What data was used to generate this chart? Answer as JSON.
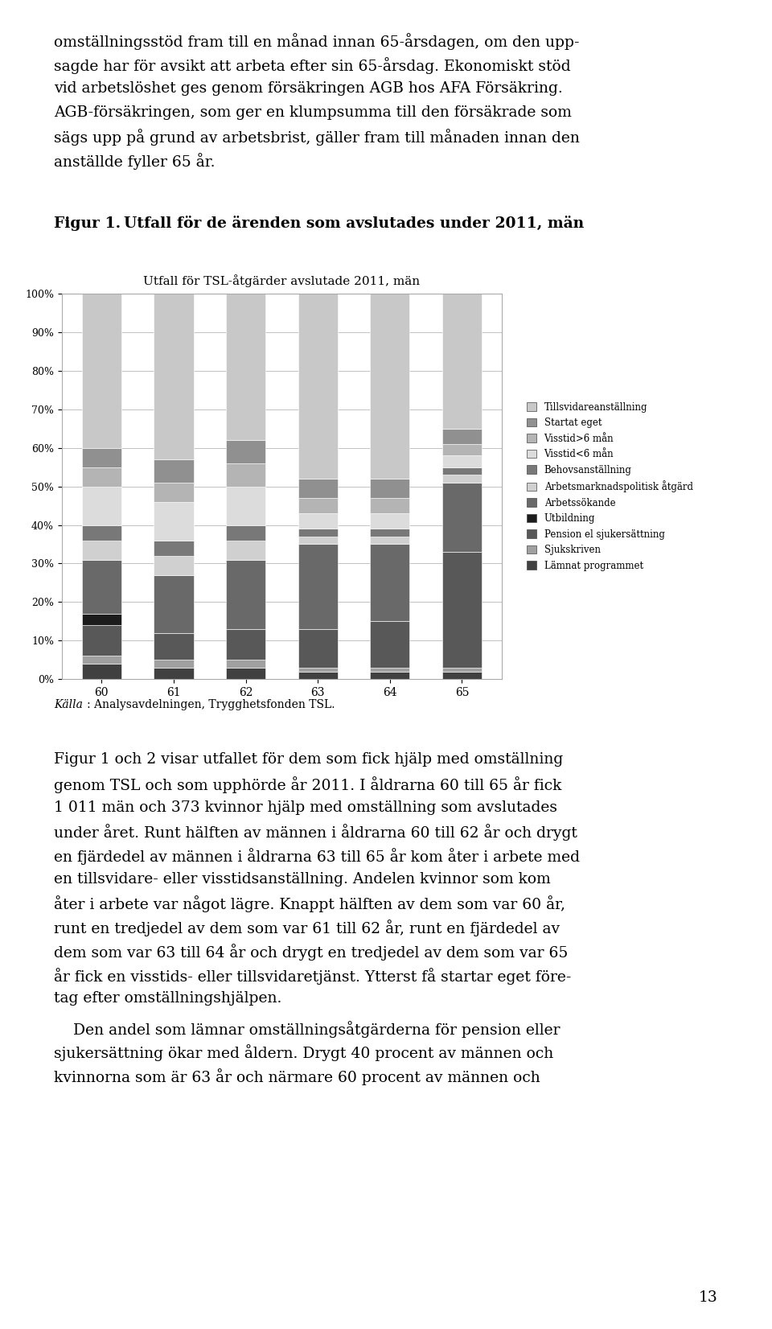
{
  "title": "Utfall för TSL-åtgärder avslutade 2011, män",
  "fig_caption": "Figur 1.",
  "fig_caption2": "Utfall för de ärenden som avslutades under 2011, män",
  "categories": [
    "60",
    "61",
    "62",
    "63",
    "64",
    "65"
  ],
  "legend_labels": [
    "Tillsvidareanställning",
    "Startat eget",
    "Visstid>6 mån",
    "Visstid<6 mån",
    "Behovsanställning",
    "Arbetsmarknadspolitisk åtgärd",
    "Arbetssökande",
    "Utbildning",
    "Pension el sjukersättning",
    "Sjukskriven",
    "Lämnat programmet"
  ],
  "colors": [
    "#c8c8c8",
    "#909090",
    "#b4b4b4",
    "#dcdcdc",
    "#787878",
    "#d0d0d0",
    "#696969",
    "#1c1c1c",
    "#585858",
    "#a0a0a0",
    "#404040"
  ],
  "data": {
    "Lämnat programmet": [
      4,
      3,
      3,
      2,
      2,
      2
    ],
    "Sjukskriven": [
      2,
      2,
      2,
      1,
      1,
      1
    ],
    "Pension el sjukersättning": [
      8,
      7,
      8,
      10,
      12,
      30
    ],
    "Utbildning": [
      3,
      0,
      0,
      0,
      0,
      0
    ],
    "Arbetssökande": [
      14,
      15,
      18,
      22,
      20,
      18
    ],
    "Arbetsmarknadspolitisk åtgärd": [
      5,
      5,
      5,
      2,
      2,
      2
    ],
    "Behovsanställning": [
      4,
      4,
      4,
      2,
      2,
      2
    ],
    "Visstid<6 mån": [
      10,
      10,
      10,
      4,
      4,
      3
    ],
    "Visstid>6 mån": [
      5,
      5,
      6,
      4,
      4,
      3
    ],
    "Startat eget": [
      5,
      6,
      6,
      5,
      5,
      4
    ],
    "Tillsvidareanställning": [
      40,
      43,
      38,
      48,
      48,
      35
    ]
  },
  "source_text_italic": "Källa",
  "source_text_normal": ": Analysavdelningen, Trygghetsfonden TSL.",
  "text_above": "omställningsstöd fram till en månad innan 65-årsdagen, om den upp-\nsagde har för avsikt att arbeta efter sin 65-årsdag. Ekonomiskt stöd\nvid arbetslöshet ges genom försäkringen AGB hos AFA Försäkring.\nAGB-försäkringen, som ger en klumpsumma till den försäkrade som\nsägs upp på grund av arbetsbrist, gäller fram till månaden innan den\nanställde fyller 65 år.",
  "text_below_p1": "Figur 1 och 2 visar utfallet för dem som fick hjälp med omställning\ngenom TSL och som upphörde år 2011. I åldrarna 60 till 65 år fick\n1 011 män och 373 kvinnor hjälp med omställning som avslutades\nunder året. Runt hälften av männen i åldrarna 60 till 62 år och drygt\nen fjärdedel av männen i åldrarna 63 till 65 år kom åter i arbete med\nen tillsvidare- eller visstidsanställning. Andelen kvinnor som kom\nåter i arbete var något lägre. Knappt hälften av dem som var 60 år,\nrunt en tredjedel av dem som var 61 till 62 år, runt en fjärdedel av\ndem som var 63 till 64 år och drygt en tredjedel av dem som var 65\når fick en visstids- eller tillsvidaretjänst. Ytterst få startar eget före-\ntag efter omställningshjälpen.",
  "text_below_p2": "    Den andel som lämnar omställningsåtgärderna för pension eller\nsjukersättning ökar med åldern. Drygt 40 procent av männen och\nkvinnorna som är 63 år och närmare 60 procent av männen och",
  "page_number": "13",
  "background_color": "#ffffff"
}
